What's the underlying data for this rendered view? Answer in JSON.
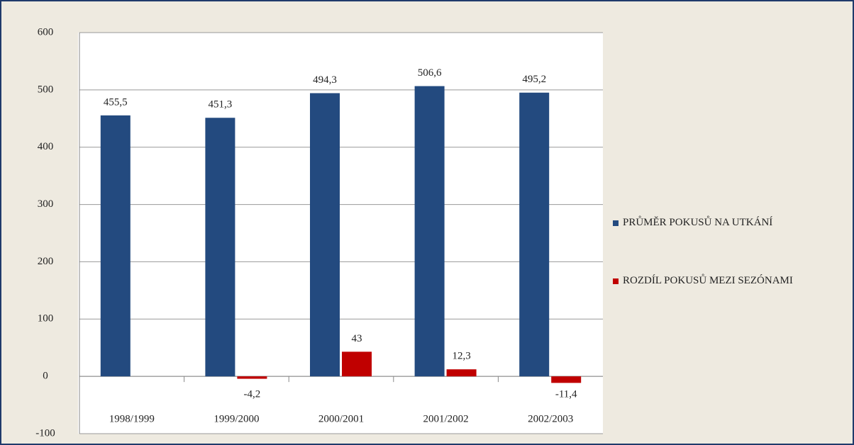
{
  "chart_data": {
    "type": "bar",
    "categories": [
      "1998/1999",
      "1999/2000",
      "2000/2001",
      "2001/2002",
      "2002/2003"
    ],
    "series": [
      {
        "name": "PRŮMĚR POKUSŮ NA UTKÁNÍ",
        "color": "#234a7f",
        "values": [
          455.5,
          451.3,
          494.3,
          506.6,
          495.2
        ],
        "value_labels": [
          "455,5",
          "451,3",
          "494,3",
          "506,6",
          "495,2"
        ]
      },
      {
        "name": "ROZDÍL POKUSŮ MEZI SEZÓNAMI",
        "color": "#c00000",
        "values": [
          null,
          -4.2,
          43,
          12.3,
          -11.4
        ],
        "value_labels": [
          null,
          "-4,2",
          "43",
          "12,3",
          "-11,4"
        ]
      }
    ],
    "ylim": [
      -100,
      600
    ],
    "yticks": [
      -100,
      0,
      100,
      200,
      300,
      400,
      500,
      600
    ],
    "grid": true,
    "legend": "right"
  }
}
